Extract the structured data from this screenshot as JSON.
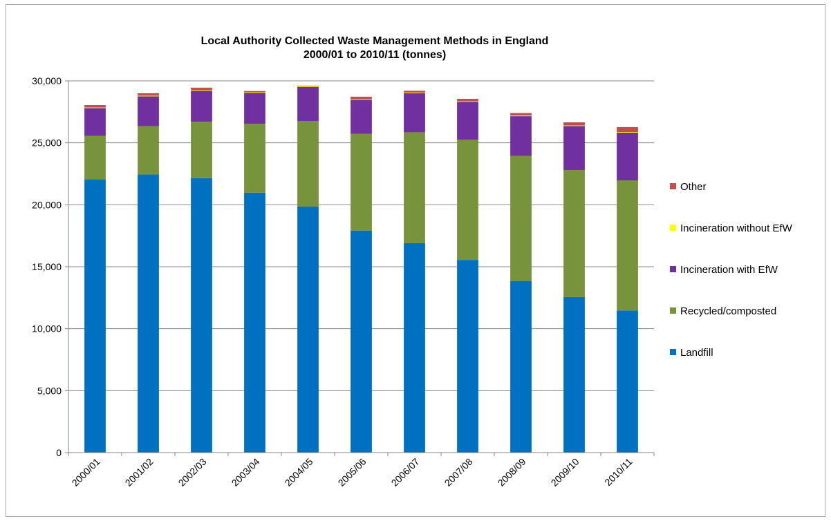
{
  "chart_data": {
    "type": "bar",
    "stacked": true,
    "title": "Local Authority Collected Waste Management Methods in England",
    "subtitle": "2000/01 to 2010/11 (tonnes)",
    "categories": [
      "2000/01",
      "2001/02",
      "2002/03",
      "2003/04",
      "2004/05",
      "2005/06",
      "2006/07",
      "2007/08",
      "2008/09",
      "2009/10",
      "2010/11"
    ],
    "ylim": [
      0,
      30000
    ],
    "yticks": [
      0,
      5000,
      10000,
      15000,
      20000,
      25000,
      30000
    ],
    "ytick_labels": [
      "0",
      "5,000",
      "10,000",
      "15,000",
      "20,000",
      "25,000",
      "30,000"
    ],
    "grid": true,
    "legend_position": "right",
    "series": [
      {
        "name": "Landfill",
        "color": "#0070c0",
        "values": [
          22050,
          22450,
          22150,
          20980,
          19850,
          17920,
          16900,
          15550,
          13850,
          12550,
          11470
        ]
      },
      {
        "name": "Recycled/composted",
        "color": "#77933c",
        "values": [
          3500,
          3900,
          4550,
          5550,
          6900,
          7800,
          8950,
          9700,
          10100,
          10250,
          10500
        ]
      },
      {
        "name": "Incineration with EfW",
        "color": "#7030a0",
        "values": [
          2250,
          2400,
          2500,
          2500,
          2750,
          2750,
          3150,
          3050,
          3200,
          3550,
          3850
        ]
      },
      {
        "name": "Incineration without EfW",
        "color": "#ffff00",
        "values": [
          50,
          50,
          50,
          50,
          50,
          50,
          50,
          50,
          50,
          50,
          50
        ]
      },
      {
        "name": "Other",
        "color": "#c0504d",
        "values": [
          200,
          200,
          200,
          100,
          50,
          200,
          150,
          200,
          200,
          250,
          400
        ]
      }
    ]
  }
}
